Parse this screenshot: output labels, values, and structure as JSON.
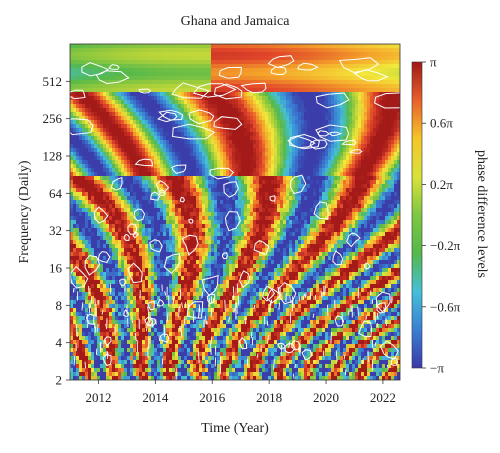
{
  "chart_data": {
    "type": "heatmap",
    "title": "Ghana and Jamaica",
    "xlabel": "Time (Year)",
    "ylabel": "Frequency (Daily)",
    "xlim": [
      2011.0,
      2022.6
    ],
    "x_ticks": [
      2012,
      2014,
      2016,
      2018,
      2020,
      2022
    ],
    "x_tick_labels": [
      "2012",
      "2014",
      "2016",
      "2018",
      "2020",
      "2022"
    ],
    "y_scale": "log2",
    "ylim": [
      2,
      1024
    ],
    "y_ticks": [
      2,
      4,
      8,
      16,
      32,
      64,
      128,
      256,
      512
    ],
    "y_tick_labels": [
      "2",
      "4",
      "8",
      "16",
      "32",
      "64",
      "128",
      "256",
      "512"
    ],
    "colorbar": {
      "label": "phase difference levels",
      "range": [
        -3.1416,
        3.1416
      ],
      "ticks": [
        3.1416,
        1.885,
        0.628,
        -0.628,
        -1.885,
        -3.1416
      ],
      "tick_labels": [
        "π",
        "0.6π",
        "0.2π",
        "−0.2π",
        "−0.6π",
        "−π"
      ],
      "colormap": [
        "#3a3aa8",
        "#3a7fd4",
        "#45c0d8",
        "#55b84a",
        "#a8cf3a",
        "#f2e83a",
        "#f5a22a",
        "#e0442a",
        "#a01818"
      ]
    },
    "contours": "white significance contours",
    "grid": false
  }
}
